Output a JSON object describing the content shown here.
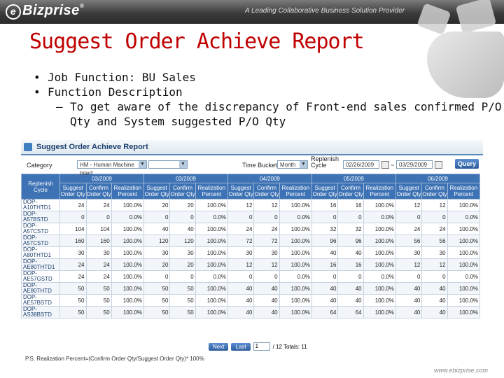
{
  "brand": {
    "name": "Bizprise",
    "mark": "e",
    "reg": "®",
    "tagline": "A Leading Collaborative Business Solution Provider"
  },
  "slide": {
    "title": "Suggest Order Achieve Report",
    "bullets": [
      {
        "text": "Job Function: BU Sales"
      },
      {
        "text": "Function Description"
      }
    ],
    "sub_bullets": [
      {
        "line1": "To get aware of the discrepancy of Front-end sales confirmed P/O",
        "line2": "Qty and System suggested P/O Qty"
      }
    ]
  },
  "report": {
    "title": "Suggest Order Achieve Report",
    "category_label": "Category",
    "category_value": "HM - Human Machine Interf",
    "time_bucket_label": "Time Bucket",
    "time_bucket_value": "Month",
    "replenish_label": "Replenish Cycle",
    "date_from": "02/26/2009",
    "date_sep": "~",
    "date_to": "03/29/2009",
    "query_label": "Query",
    "first_col": "Replenish Cycle",
    "months": [
      "03/2009",
      "03/2009",
      "04/2009",
      "05/2009",
      "06/2009"
    ],
    "sub_cols": [
      "Suggest Order Qty",
      "Confirm Order Qty",
      "Realization Percent"
    ],
    "rows": [
      {
        "code": "DOP-A10THTD1",
        "v": [
          "24",
          "24",
          "100.0%",
          "20",
          "20",
          "100.0%",
          "12",
          "12",
          "100.0%",
          "16",
          "16",
          "100.0%",
          "12",
          "12",
          "100.0%"
        ]
      },
      {
        "code": "DOP-A57BSTD",
        "v": [
          "0",
          "0",
          "0.0%",
          "0",
          "0",
          "0.0%",
          "0",
          "0",
          "0.0%",
          "0",
          "0",
          "0.0%",
          "0",
          "0",
          "0.0%"
        ]
      },
      {
        "code": "DOP-A57CSTD",
        "v": [
          "104",
          "104",
          "100.0%",
          "40",
          "40",
          "100.0%",
          "24",
          "24",
          "100.0%",
          "32",
          "32",
          "100.0%",
          "24",
          "24",
          "100.0%"
        ]
      },
      {
        "code": "DOP-A57CSTD",
        "v": [
          "160",
          "160",
          "100.0%",
          "120",
          "120",
          "100.0%",
          "72",
          "72",
          "100.0%",
          "96",
          "96",
          "100.0%",
          "56",
          "56",
          "100.0%"
        ]
      },
      {
        "code": "DOP-A80THTD1",
        "v": [
          "30",
          "30",
          "100.0%",
          "30",
          "30",
          "100.0%",
          "30",
          "30",
          "100.0%",
          "40",
          "40",
          "100.0%",
          "30",
          "30",
          "100.0%"
        ]
      },
      {
        "code": "DOP-AE80THTD1",
        "v": [
          "24",
          "24",
          "100.0%",
          "20",
          "20",
          "100.0%",
          "12",
          "12",
          "100.0%",
          "16",
          "16",
          "100.0%",
          "12",
          "12",
          "100.0%"
        ]
      },
      {
        "code": "DOP-AE57GSTD",
        "v": [
          "24",
          "24",
          "100.0%",
          "0",
          "0",
          "0.0%",
          "0",
          "0",
          "0.0%",
          "0",
          "0",
          "0.0%",
          "0",
          "0",
          "0.0%"
        ]
      },
      {
        "code": "DOP-AE80THTD",
        "v": [
          "50",
          "50",
          "100.0%",
          "50",
          "50",
          "100.0%",
          "40",
          "40",
          "100.0%",
          "40",
          "40",
          "100.0%",
          "40",
          "40",
          "100.0%"
        ]
      },
      {
        "code": "DOP-AE57BSTD",
        "v": [
          "50",
          "50",
          "100.0%",
          "50",
          "50",
          "100.0%",
          "40",
          "40",
          "100.0%",
          "40",
          "40",
          "100.0%",
          "40",
          "40",
          "100.0%"
        ]
      },
      {
        "code": "DOP-AS38BSTD",
        "v": [
          "50",
          "50",
          "100.0%",
          "50",
          "50",
          "100.0%",
          "40",
          "40",
          "100.0%",
          "64",
          "64",
          "100.0%",
          "40",
          "40",
          "100.0%"
        ]
      }
    ],
    "pager": {
      "next": "Next",
      "last": "Last",
      "page": "1",
      "total": "/ 12 Totals: 11"
    },
    "note": "P.S. Realization Percent=(Confirm Order Qty/Suggest Order Qty)* 100%"
  },
  "footer_url": "www.ebizprise.com"
}
